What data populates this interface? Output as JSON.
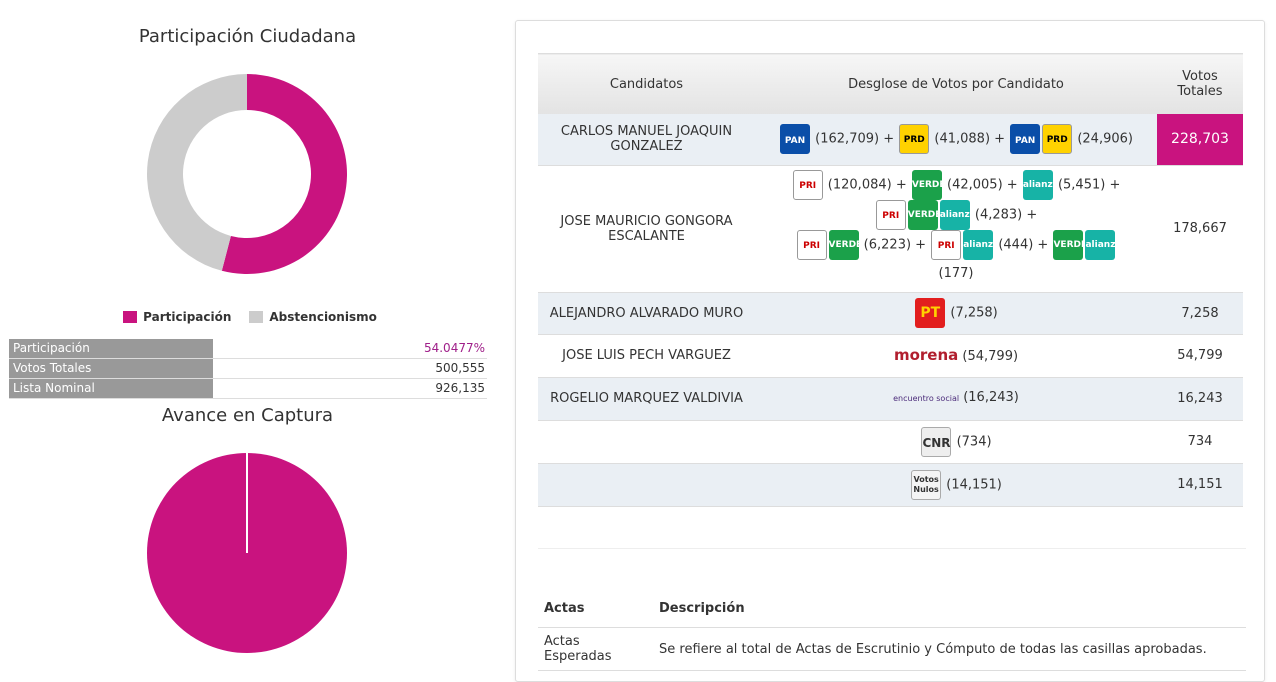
{
  "participacion": {
    "title": "Participación Ciudadana",
    "legend": [
      {
        "label": "Participación",
        "color": "#c9137f"
      },
      {
        "label": "Abstencionismo",
        "color": "#cccccc"
      }
    ],
    "participation_pct": 54.0477,
    "colors": {
      "participation": "#c9137f",
      "abstention": "#cccccc"
    }
  },
  "stats": [
    {
      "label": "Participación",
      "value": "54.0477%",
      "value_color": "#a0208a"
    },
    {
      "label": "Votos Totales",
      "value": "500,555",
      "value_color": "#333333"
    },
    {
      "label": "Lista Nominal",
      "value": "926,135",
      "value_color": "#333333"
    }
  ],
  "avance": {
    "title": "Avance en Captura",
    "captured_fraction": 1.0,
    "color": "#c9137f"
  },
  "results": {
    "headers": {
      "candidatos": "Candidatos",
      "desglose": "Desglose de Votos por Candidato",
      "votos_l1": "Votos",
      "votos_l2": "Totales"
    },
    "rows": [
      {
        "name": "CARLOS MANUEL JOAQUIN GONZALEZ",
        "breakdown": [
          "(162,709) +",
          "(41,088) +",
          "(24,906)"
        ],
        "total": "228,703"
      },
      {
        "name": "JOSE MAURICIO GONGORA ESCALANTE",
        "breakdown": [
          "(120,084) +",
          "(42,005) +",
          "(5,451) +",
          "(4,283) +",
          "(6,223) +",
          "(444) +",
          "(177)"
        ],
        "total": "178,667"
      },
      {
        "name": "ALEJANDRO ALVARADO MURO",
        "breakdown": [
          "(7,258)"
        ],
        "total": "7,258"
      },
      {
        "name": "JOSE LUIS PECH VARGUEZ",
        "breakdown": [
          "(54,799)"
        ],
        "total": "54,799"
      },
      {
        "name": "ROGELIO MARQUEZ VALDIVIA",
        "breakdown": [
          "(16,243)"
        ],
        "total": "16,243"
      },
      {
        "name": "",
        "breakdown": [
          "(734)"
        ],
        "total": "734"
      },
      {
        "name": "",
        "breakdown": [
          "(14,151)"
        ],
        "total": "14,151"
      }
    ],
    "logos": {
      "pan": "PAN",
      "prd": "PRD",
      "pri": "PRI",
      "verde": "VERDE",
      "alianza": "alianza",
      "pt": "PT",
      "morena": "morena",
      "encuentro": "encuentro social",
      "cnr": "CNR",
      "nulos_l1": "Votos",
      "nulos_l2": "Nulos"
    }
  },
  "actas": {
    "headers": {
      "actas": "Actas",
      "descripcion": "Descripción"
    },
    "rows": [
      {
        "actas": "Actas Esperadas",
        "descripcion": "Se refiere al total de Actas de Escrutinio y Cómputo de todas las casillas aprobadas."
      }
    ]
  }
}
